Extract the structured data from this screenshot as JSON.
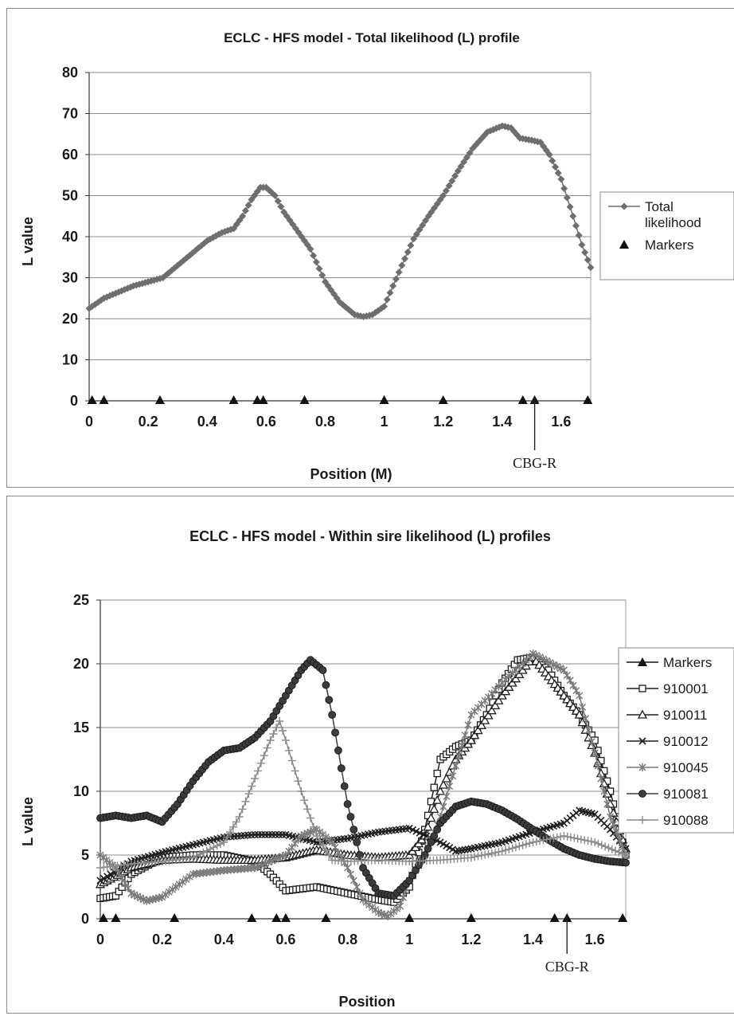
{
  "chart_data": [
    {
      "type": "line",
      "title": "ECLC - HFS model - Total likelihood (L) profile",
      "xlabel": "Position (M)",
      "ylabel": "L value",
      "xlim": [
        0,
        1.7
      ],
      "ylim": [
        0,
        80
      ],
      "xticks": [
        "0",
        "0.2",
        "0.4",
        "0.6",
        "0.8",
        "1",
        "1.2",
        "1.4",
        "1.6"
      ],
      "xtick_values": [
        0,
        0.2,
        0.4,
        0.6,
        0.8,
        1.0,
        1.2,
        1.4,
        1.6
      ],
      "yticks": [
        "0",
        "10",
        "20",
        "30",
        "40",
        "50",
        "60",
        "70",
        "80"
      ],
      "ytick_values": [
        0,
        10,
        20,
        30,
        40,
        50,
        60,
        70,
        80
      ],
      "grid": "horizontal",
      "legend_position": "right",
      "legend": [
        "Total likelihood",
        "Markers"
      ],
      "series": [
        {
          "name": "Total likelihood",
          "marker": "diamond",
          "color": "#6e6e6e",
          "x": [
            0,
            0.05,
            0.1,
            0.15,
            0.2,
            0.25,
            0.3,
            0.35,
            0.4,
            0.45,
            0.49,
            0.52,
            0.55,
            0.58,
            0.6,
            0.63,
            0.66,
            0.7,
            0.75,
            0.8,
            0.85,
            0.9,
            0.93,
            0.96,
            1.0,
            1.03,
            1.06,
            1.1,
            1.15,
            1.2,
            1.25,
            1.3,
            1.35,
            1.4,
            1.43,
            1.46,
            1.5,
            1.53,
            1.56,
            1.6,
            1.64,
            1.67,
            1.7
          ],
          "y": [
            22.5,
            25,
            26.5,
            28,
            29,
            30,
            33,
            36,
            39,
            41,
            42,
            45,
            49,
            52,
            52,
            50,
            46,
            42,
            37,
            29,
            24,
            21,
            20.5,
            21,
            23,
            28,
            33,
            39.5,
            45,
            50,
            56,
            61.5,
            65.5,
            67,
            66.5,
            64,
            63.5,
            63,
            60,
            54,
            45,
            38,
            32.5
          ]
        },
        {
          "name": "Markers",
          "marker": "triangle",
          "color": "#111111",
          "x": [
            0.01,
            0.05,
            0.24,
            0.49,
            0.57,
            0.59,
            0.73,
            1.0,
            1.2,
            1.47,
            1.51,
            1.69
          ],
          "y": [
            0,
            0,
            0,
            0,
            0,
            0,
            0,
            0,
            0,
            0,
            0,
            0
          ]
        }
      ],
      "annotations": [
        {
          "text": "CBG-R",
          "x": 1.51
        }
      ]
    },
    {
      "type": "line",
      "title": "ECLC - HFS model - Within sire likelihood (L) profiles",
      "xlabel": "Position",
      "ylabel": "L value",
      "xlim": [
        0,
        1.7
      ],
      "ylim": [
        0,
        25
      ],
      "xticks": [
        "0",
        "0.2",
        "0.4",
        "0.6",
        "0.8",
        "1",
        "1.2",
        "1.4",
        "1.6"
      ],
      "xtick_values": [
        0,
        0.2,
        0.4,
        0.6,
        0.8,
        1.0,
        1.2,
        1.4,
        1.6
      ],
      "yticks": [
        "0",
        "5",
        "10",
        "15",
        "20",
        "25"
      ],
      "ytick_values": [
        0,
        5,
        10,
        15,
        20,
        25
      ],
      "grid": "horizontal",
      "legend_position": "right",
      "legend": [
        "Markers",
        "910001",
        "910011",
        "910012",
        "910045",
        "910081",
        "910088"
      ],
      "series": [
        {
          "name": "Markers",
          "marker": "triangle",
          "color": "#111111",
          "x": [
            0.01,
            0.05,
            0.24,
            0.49,
            0.57,
            0.6,
            0.73,
            1.0,
            1.2,
            1.47,
            1.51,
            1.69
          ],
          "y": [
            0,
            0,
            0,
            0,
            0,
            0,
            0,
            0,
            0,
            0,
            0,
            0
          ]
        },
        {
          "name": "910001",
          "marker": "square",
          "color": "#1e1e1e",
          "x": [
            0,
            0.05,
            0.1,
            0.2,
            0.3,
            0.4,
            0.5,
            0.55,
            0.6,
            0.7,
            0.8,
            0.9,
            0.95,
            1.0,
            1.05,
            1.1,
            1.15,
            1.2,
            1.25,
            1.3,
            1.35,
            1.4,
            1.45,
            1.5,
            1.55,
            1.6,
            1.65,
            1.7
          ],
          "y": [
            1.6,
            1.8,
            3.5,
            4.8,
            5,
            5,
            4.5,
            3.5,
            2.2,
            2.5,
            2,
            1.5,
            1.3,
            2.5,
            7,
            12.5,
            13.5,
            14,
            16,
            18.5,
            20.3,
            20.5,
            19.5,
            17.5,
            16,
            14,
            10,
            5
          ]
        },
        {
          "name": "910011",
          "marker": "triangle-open",
          "color": "#1e1e1e",
          "x": [
            0,
            0.1,
            0.2,
            0.3,
            0.4,
            0.5,
            0.6,
            0.7,
            0.8,
            0.9,
            1.0,
            1.05,
            1.1,
            1.15,
            1.2,
            1.3,
            1.4,
            1.45,
            1.5,
            1.55,
            1.6,
            1.65,
            1.7
          ],
          "y": [
            2.7,
            4,
            4.6,
            4.7,
            4.6,
            4.6,
            4.8,
            5.4,
            5,
            4.8,
            5,
            6.5,
            10,
            12.5,
            14,
            17.5,
            20.5,
            19,
            17.5,
            16,
            13,
            9,
            5.5
          ]
        },
        {
          "name": "910012",
          "marker": "x",
          "color": "#1e1e1e",
          "x": [
            0,
            0.1,
            0.2,
            0.3,
            0.4,
            0.5,
            0.6,
            0.7,
            0.8,
            0.9,
            1.0,
            1.1,
            1.15,
            1.2,
            1.3,
            1.4,
            1.5,
            1.55,
            1.6,
            1.65,
            1.7
          ],
          "y": [
            3,
            4.5,
            5.2,
            5.8,
            6.4,
            6.6,
            6.6,
            6,
            6.3,
            6.8,
            7.1,
            6,
            5.3,
            5.5,
            6,
            6.8,
            7.5,
            8.5,
            8.2,
            7,
            5.5
          ]
        },
        {
          "name": "910045",
          "marker": "asterisk",
          "color": "#7a7a7a",
          "x": [
            0,
            0.05,
            0.1,
            0.15,
            0.2,
            0.3,
            0.4,
            0.5,
            0.6,
            0.65,
            0.7,
            0.75,
            0.8,
            0.85,
            0.9,
            0.93,
            0.97,
            1.0,
            1.05,
            1.1,
            1.15,
            1.2,
            1.3,
            1.4,
            1.5,
            1.55,
            1.6,
            1.65,
            1.7
          ],
          "y": [
            5,
            4,
            2,
            1.4,
            1.7,
            3.5,
            3.8,
            4,
            5,
            6.5,
            7,
            6,
            4,
            1.5,
            0.5,
            0.2,
            1,
            3,
            5,
            8,
            12,
            16,
            18.5,
            20.8,
            19.5,
            17.5,
            13,
            8,
            5
          ]
        },
        {
          "name": "910081",
          "marker": "circle",
          "color": "#3c3c3c",
          "x": [
            0,
            0.05,
            0.1,
            0.15,
            0.2,
            0.25,
            0.3,
            0.35,
            0.4,
            0.45,
            0.5,
            0.55,
            0.6,
            0.65,
            0.68,
            0.72,
            0.75,
            0.8,
            0.85,
            0.9,
            0.95,
            1.0,
            1.05,
            1.1,
            1.15,
            1.2,
            1.25,
            1.3,
            1.35,
            1.4,
            1.45,
            1.5,
            1.55,
            1.6,
            1.65,
            1.7
          ],
          "y": [
            7.9,
            8.1,
            7.9,
            8.1,
            7.6,
            9,
            10.8,
            12.3,
            13.2,
            13.4,
            14.2,
            15.5,
            17.5,
            19.5,
            20.3,
            19.5,
            16,
            9,
            4,
            2,
            1.8,
            3,
            5,
            7.5,
            8.8,
            9.2,
            9,
            8.5,
            7.8,
            7,
            6.2,
            5.5,
            5,
            4.7,
            4.5,
            4.4
          ]
        },
        {
          "name": "910088",
          "marker": "plus",
          "color": "#8a8a8a",
          "x": [
            0,
            0.1,
            0.2,
            0.3,
            0.4,
            0.45,
            0.5,
            0.55,
            0.58,
            0.6,
            0.65,
            0.7,
            0.75,
            0.8,
            0.9,
            1.0,
            1.1,
            1.2,
            1.3,
            1.4,
            1.5,
            1.6,
            1.7
          ],
          "y": [
            4,
            4.3,
            4.5,
            4.8,
            6,
            8,
            11,
            14,
            15.5,
            14,
            10,
            6.5,
            4.6,
            4.5,
            4.6,
            4.5,
            4.6,
            4.8,
            5.3,
            6,
            6.5,
            6,
            5
          ]
        }
      ],
      "annotations": [
        {
          "text": "CBG-R",
          "x": 1.51
        }
      ]
    }
  ]
}
